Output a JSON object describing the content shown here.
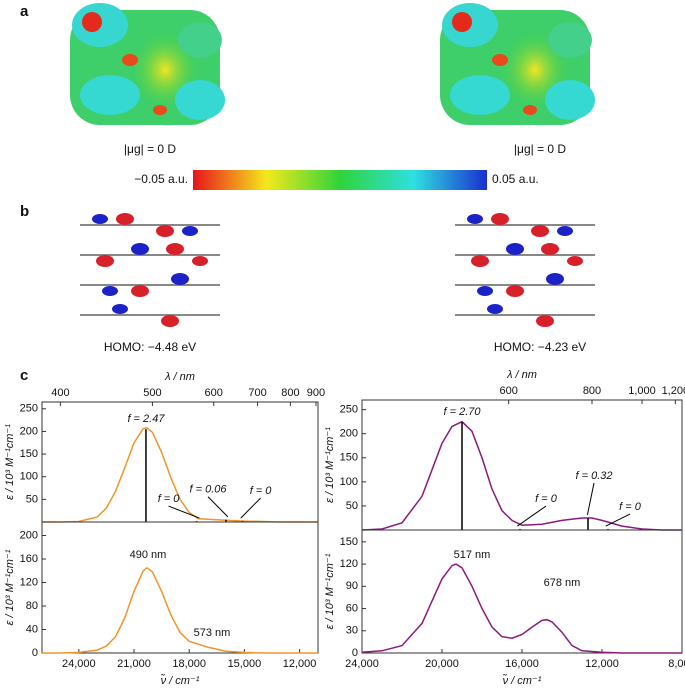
{
  "panel_labels": [
    "a",
    "b",
    "c"
  ],
  "panel_a": {
    "dipoles": [
      "|μg| = 0 D",
      "|μg| = 0 D"
    ],
    "colorbar": [
      "−0.05 a.u.",
      "0.05 a.u."
    ]
  },
  "panel_b": {
    "homo": [
      "HOMO: −4.48 eV",
      "HOMO: −4.23 eV"
    ]
  },
  "chart_data": [
    {
      "type": "line",
      "y_label": "ε / 10³ M⁻¹cm⁻¹",
      "x2_label": "λ / nm",
      "color": "#f0952a",
      "x": [
        26000,
        25000,
        24000,
        23000,
        22500,
        22000,
        21500,
        21000,
        20500,
        20300,
        20000,
        19500,
        19000,
        18500,
        18000,
        17500,
        17000,
        16000,
        15000,
        14000,
        13000,
        12000,
        11000
      ],
      "values": [
        0,
        0,
        1,
        11,
        31,
        68,
        120,
        175,
        206,
        208,
        198,
        154,
        98,
        50,
        21,
        7,
        6,
        4,
        2,
        1,
        0,
        0,
        0
      ],
      "sticks": {
        "x": [
          20350,
          17600,
          16000,
          15100
        ],
        "values": [
          205,
          2,
          5,
          2
        ],
        "labels": [
          "f = 2.47",
          "f = 0",
          "f = 0.06",
          "f = 0"
        ]
      },
      "xlim": [
        26000,
        11000
      ],
      "ylim": [
        0,
        265
      ],
      "yticks": [
        50,
        100,
        150,
        200,
        250
      ],
      "x2ticks": [
        400,
        500,
        600,
        700,
        800,
        900
      ]
    },
    {
      "type": "line",
      "y_label": "ε / 10³ M⁻¹cm⁻¹",
      "x_label": "ν̃ / cm⁻¹",
      "color": "#f0952a",
      "x": [
        26000,
        25000,
        24000,
        23000,
        22500,
        22000,
        21500,
        21000,
        20500,
        20300,
        20000,
        19500,
        19000,
        18500,
        18000,
        17500,
        17000,
        16000,
        15000,
        14000,
        13000,
        12000,
        11000
      ],
      "values": [
        0,
        0,
        1,
        5,
        12,
        28,
        60,
        105,
        140,
        145,
        138,
        105,
        65,
        35,
        20,
        15,
        10,
        3,
        1,
        0,
        0,
        0,
        0
      ],
      "peak_labels": [
        "490 nm",
        "573 nm"
      ],
      "xlim": [
        26000,
        11000
      ],
      "ylim": [
        0,
        223
      ],
      "yticks": [
        0,
        40,
        80,
        120,
        160,
        200
      ],
      "xticks": [
        {
          "value": 24000,
          "label": "24,000"
        },
        {
          "value": 21000,
          "label": "21,000"
        },
        {
          "value": 18000,
          "label": "18,000"
        },
        {
          "value": 15000,
          "label": "15,000"
        },
        {
          "value": 12000,
          "label": "12,000"
        }
      ]
    },
    {
      "type": "line",
      "y_label": "ε / 10³ M⁻¹cm⁻¹",
      "x2_label": "λ / nm",
      "color": "#8b1a7e",
      "x": [
        24000,
        23000,
        22000,
        21000,
        20500,
        20000,
        19500,
        19000,
        18500,
        18000,
        17500,
        17000,
        16500,
        16000,
        15000,
        14000,
        13000,
        12500,
        12000,
        11000,
        10000,
        9000,
        8000
      ],
      "values": [
        0,
        2,
        15,
        70,
        125,
        180,
        215,
        225,
        205,
        150,
        85,
        40,
        20,
        10,
        12,
        20,
        25,
        25,
        20,
        8,
        2,
        0,
        0
      ],
      "sticks": {
        "x": [
          19000,
          16100,
          12700,
          11700
        ],
        "values": [
          224,
          2,
          25,
          2
        ],
        "labels": [
          "f = 2.70",
          "f = 0",
          "f = 0.32",
          "f = 0"
        ]
      },
      "xlim": [
        24000,
        8000
      ],
      "ylim": [
        0,
        270
      ],
      "yticks": [
        50,
        100,
        150,
        200,
        250
      ],
      "x2ticks": [
        600,
        800,
        {
          "value": 1000,
          "label": "1,000"
        },
        {
          "value": 1200,
          "label": "1,200"
        }
      ]
    },
    {
      "type": "line",
      "y_label": "ε / 10³ M⁻¹cm⁻¹",
      "x_label": "ν̃ / cm⁻¹",
      "color": "#8b1a7e",
      "x": [
        24000,
        23000,
        22000,
        21000,
        20500,
        20000,
        19500,
        19300,
        19000,
        18500,
        18000,
        17500,
        17000,
        16500,
        16000,
        15500,
        15000,
        14750,
        14500,
        14000,
        13500,
        13000,
        12000,
        11000,
        10000,
        8000
      ],
      "values": [
        1,
        3,
        10,
        40,
        70,
        100,
        118,
        120,
        115,
        90,
        60,
        35,
        22,
        20,
        25,
        35,
        44,
        45,
        42,
        28,
        10,
        3,
        1,
        0,
        0,
        0
      ],
      "peak_labels": [
        "517 nm",
        "678 nm"
      ],
      "xlim": [
        24000,
        8000
      ],
      "ylim": [
        0,
        166
      ],
      "yticks": [
        0,
        30,
        60,
        90,
        120,
        150
      ],
      "xticks": [
        {
          "value": 24000,
          "label": "24,000"
        },
        {
          "value": 20000,
          "label": "20,000"
        },
        {
          "value": 16000,
          "label": "16,000"
        },
        {
          "value": 12000,
          "label": "12,000"
        },
        {
          "value": 8000,
          "label": "8,000"
        }
      ]
    }
  ]
}
